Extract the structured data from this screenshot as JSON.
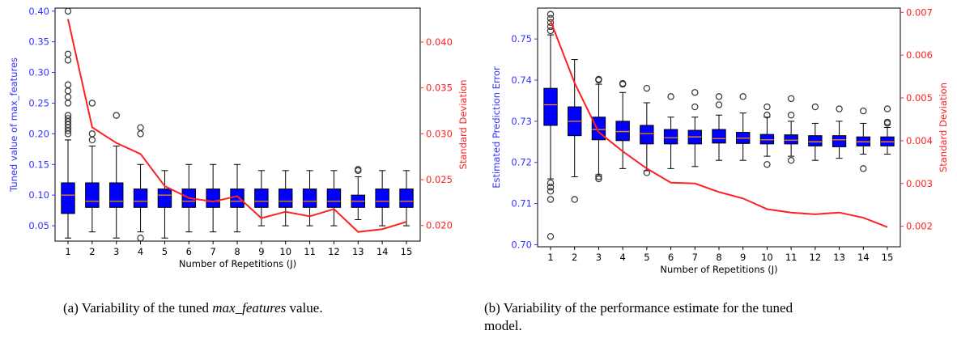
{
  "captions": {
    "a_prefix": "(a)  Variability of the tuned ",
    "a_math": "max_features",
    "a_suffix": " value.",
    "b_line1": "(b)  Variability of the performance estimate for the tuned",
    "b_line2": "model."
  },
  "colors": {
    "box_fill": "#0000ff",
    "median": "#ff8c00",
    "sd_line": "#ff2020",
    "left_axis": "#3333ff",
    "right_axis": "#ff2020"
  },
  "chart_data": [
    {
      "type": "box",
      "title": "",
      "xlabel": "Number of Repetitions (J)",
      "ylabel": "Tuned value of max_features",
      "y2label": "Standard Deviation",
      "ylim": [
        0.025,
        0.405
      ],
      "y2lim": [
        0.0183,
        0.0437
      ],
      "yticks": [
        "0.05",
        "0.10",
        "0.15",
        "0.20",
        "0.25",
        "0.30",
        "0.35",
        "0.40"
      ],
      "y2ticks": [
        "0.020",
        "0.025",
        "0.030",
        "0.035",
        "0.040"
      ],
      "categories": [
        "1",
        "2",
        "3",
        "4",
        "5",
        "6",
        "7",
        "8",
        "9",
        "10",
        "11",
        "12",
        "13",
        "14",
        "15"
      ],
      "boxes": [
        {
          "q1": 0.07,
          "med": 0.1,
          "q3": 0.12,
          "wlo": 0.03,
          "whi": 0.19,
          "fliers": [
            0.2,
            0.205,
            0.21,
            0.215,
            0.22,
            0.225,
            0.23,
            0.25,
            0.26,
            0.27,
            0.28,
            0.32,
            0.33,
            0.4
          ]
        },
        {
          "q1": 0.08,
          "med": 0.09,
          "q3": 0.12,
          "wlo": 0.04,
          "whi": 0.18,
          "fliers": [
            0.19,
            0.2,
            0.25
          ]
        },
        {
          "q1": 0.08,
          "med": 0.09,
          "q3": 0.12,
          "wlo": 0.03,
          "whi": 0.18,
          "fliers": [
            0.23
          ]
        },
        {
          "q1": 0.08,
          "med": 0.09,
          "q3": 0.11,
          "wlo": 0.04,
          "whi": 0.15,
          "fliers": [
            0.03,
            0.2,
            0.21
          ]
        },
        {
          "q1": 0.08,
          "med": 0.1,
          "q3": 0.11,
          "wlo": 0.03,
          "whi": 0.14,
          "fliers": []
        },
        {
          "q1": 0.08,
          "med": 0.09,
          "q3": 0.11,
          "wlo": 0.04,
          "whi": 0.15,
          "fliers": []
        },
        {
          "q1": 0.08,
          "med": 0.09,
          "q3": 0.11,
          "wlo": 0.04,
          "whi": 0.15,
          "fliers": []
        },
        {
          "q1": 0.08,
          "med": 0.09,
          "q3": 0.11,
          "wlo": 0.04,
          "whi": 0.15,
          "fliers": []
        },
        {
          "q1": 0.08,
          "med": 0.09,
          "q3": 0.11,
          "wlo": 0.05,
          "whi": 0.14,
          "fliers": []
        },
        {
          "q1": 0.08,
          "med": 0.09,
          "q3": 0.11,
          "wlo": 0.05,
          "whi": 0.14,
          "fliers": []
        },
        {
          "q1": 0.08,
          "med": 0.09,
          "q3": 0.11,
          "wlo": 0.05,
          "whi": 0.14,
          "fliers": []
        },
        {
          "q1": 0.08,
          "med": 0.09,
          "q3": 0.11,
          "wlo": 0.05,
          "whi": 0.14,
          "fliers": []
        },
        {
          "q1": 0.08,
          "med": 0.09,
          "q3": 0.1,
          "wlo": 0.06,
          "whi": 0.13,
          "fliers": [
            0.14,
            0.142
          ]
        },
        {
          "q1": 0.08,
          "med": 0.09,
          "q3": 0.11,
          "wlo": 0.05,
          "whi": 0.14,
          "fliers": []
        },
        {
          "q1": 0.08,
          "med": 0.09,
          "q3": 0.11,
          "wlo": 0.05,
          "whi": 0.14,
          "fliers": []
        }
      ],
      "sd_values": [
        0.0425,
        0.0307,
        0.029,
        0.0278,
        0.0243,
        0.023,
        0.0226,
        0.0232,
        0.0208,
        0.0215,
        0.021,
        0.0218,
        0.0193,
        0.0196,
        0.0204
      ]
    },
    {
      "type": "box",
      "title": "",
      "xlabel": "Number of Repetitions (J)",
      "ylabel": "Estimated Prediction Error",
      "y2label": "Standard Deviation",
      "ylim": [
        0.6995,
        0.7575
      ],
      "y2lim": [
        0.00152,
        0.0071
      ],
      "yticks": [
        "0.70",
        "0.71",
        "0.72",
        "0.73",
        "0.74",
        "0.75"
      ],
      "y2ticks": [
        "0.002",
        "0.003",
        "0.004",
        "0.005",
        "0.006",
        "0.007"
      ],
      "categories": [
        "1",
        "2",
        "3",
        "4",
        "5",
        "6",
        "7",
        "8",
        "9",
        "10",
        "11",
        "12",
        "13",
        "14",
        "15"
      ],
      "boxes": [
        {
          "q1": 0.729,
          "med": 0.734,
          "q3": 0.738,
          "wlo": 0.716,
          "whi": 0.751,
          "fliers": [
            0.702,
            0.711,
            0.713,
            0.714,
            0.715,
            0.752,
            0.753,
            0.754,
            0.755,
            0.756
          ]
        },
        {
          "q1": 0.7265,
          "med": 0.73,
          "q3": 0.7335,
          "wlo": 0.7165,
          "whi": 0.745,
          "fliers": [
            0.711
          ]
        },
        {
          "q1": 0.7255,
          "med": 0.728,
          "q3": 0.731,
          "wlo": 0.717,
          "whi": 0.739,
          "fliers": [
            0.716,
            0.7165,
            0.74,
            0.7402
          ]
        },
        {
          "q1": 0.7253,
          "med": 0.7275,
          "q3": 0.73,
          "wlo": 0.7185,
          "whi": 0.737,
          "fliers": [
            0.739,
            0.7392
          ]
        },
        {
          "q1": 0.7245,
          "med": 0.727,
          "q3": 0.729,
          "wlo": 0.718,
          "whi": 0.7345,
          "fliers": [
            0.7175,
            0.738
          ]
        },
        {
          "q1": 0.7245,
          "med": 0.726,
          "q3": 0.728,
          "wlo": 0.7185,
          "whi": 0.731,
          "fliers": [
            0.736
          ]
        },
        {
          "q1": 0.7245,
          "med": 0.7262,
          "q3": 0.7278,
          "wlo": 0.719,
          "whi": 0.731,
          "fliers": [
            0.7335,
            0.737
          ]
        },
        {
          "q1": 0.7247,
          "med": 0.7258,
          "q3": 0.728,
          "wlo": 0.7205,
          "whi": 0.7315,
          "fliers": [
            0.734,
            0.736
          ]
        },
        {
          "q1": 0.7246,
          "med": 0.7259,
          "q3": 0.7273,
          "wlo": 0.7205,
          "whi": 0.732,
          "fliers": [
            0.736
          ]
        },
        {
          "q1": 0.7245,
          "med": 0.7255,
          "q3": 0.7268,
          "wlo": 0.7215,
          "whi": 0.731,
          "fliers": [
            0.7195,
            0.7315,
            0.7335
          ]
        },
        {
          "q1": 0.7245,
          "med": 0.7254,
          "q3": 0.7267,
          "wlo": 0.7215,
          "whi": 0.73,
          "fliers": [
            0.7205,
            0.7315,
            0.7355
          ]
        },
        {
          "q1": 0.724,
          "med": 0.725,
          "q3": 0.7265,
          "wlo": 0.7205,
          "whi": 0.7295,
          "fliers": [
            0.7335
          ]
        },
        {
          "q1": 0.7238,
          "med": 0.7255,
          "q3": 0.7265,
          "wlo": 0.721,
          "whi": 0.73,
          "fliers": [
            0.733
          ]
        },
        {
          "q1": 0.724,
          "med": 0.725,
          "q3": 0.7262,
          "wlo": 0.722,
          "whi": 0.7295,
          "fliers": [
            0.7185,
            0.7325
          ]
        },
        {
          "q1": 0.724,
          "med": 0.725,
          "q3": 0.7262,
          "wlo": 0.722,
          "whi": 0.7285,
          "fliers": [
            0.7295,
            0.7298,
            0.733
          ]
        }
      ],
      "sd_values": [
        0.0068,
        0.00535,
        0.0042,
        0.00375,
        0.00335,
        0.00302,
        0.003,
        0.0028,
        0.00265,
        0.0024,
        0.00232,
        0.00228,
        0.00232,
        0.0022,
        0.00198
      ]
    }
  ]
}
